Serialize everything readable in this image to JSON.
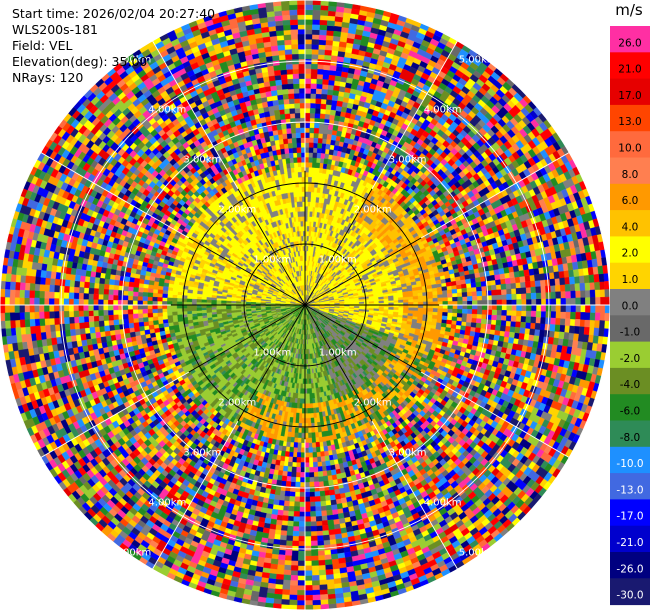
{
  "header": {
    "start_time": "Start time: 2026/02/04 20:27:40",
    "instrument": "WLS200s-181",
    "field": "Field: VEL",
    "elevation": "Elevation(deg): 35.00",
    "nrays": "NRays: 120"
  },
  "colorbar": {
    "unit": "m/s",
    "levels": [
      {
        "label": "26.0",
        "color": "#ff2fa3"
      },
      {
        "label": "21.0",
        "color": "#ff0000"
      },
      {
        "label": "17.0",
        "color": "#e60000"
      },
      {
        "label": "13.0",
        "color": "#ff4500"
      },
      {
        "label": "10.0",
        "color": "#ff6a3d"
      },
      {
        "label": "8.0",
        "color": "#ff7f50"
      },
      {
        "label": "6.0",
        "color": "#ff9900"
      },
      {
        "label": "4.0",
        "color": "#ffc200"
      },
      {
        "label": "2.0",
        "color": "#ffff00"
      },
      {
        "label": "1.0",
        "color": "#ffd400"
      },
      {
        "label": "0.0",
        "color": "#808080"
      },
      {
        "label": "-1.0",
        "color": "#696969"
      },
      {
        "label": "-2.0",
        "color": "#9acd32"
      },
      {
        "label": "-4.0",
        "color": "#6b8e23"
      },
      {
        "label": "-6.0",
        "color": "#228b22"
      },
      {
        "label": "-8.0",
        "color": "#2e8b57"
      },
      {
        "label": "-10.0",
        "color": "#1e90ff"
      },
      {
        "label": "-13.0",
        "color": "#4169e1"
      },
      {
        "label": "-17.0",
        "color": "#0000ff"
      },
      {
        "label": "-21.0",
        "color": "#0000cd"
      },
      {
        "label": "-26.0",
        "color": "#000080"
      },
      {
        "label": "-30.0",
        "color": "#191970"
      }
    ]
  },
  "chart_data": {
    "type": "heatmap",
    "projection": "polar-ppi",
    "field": "VEL",
    "unit": "m/s",
    "elevation_deg": 35.0,
    "nrays": 120,
    "range_rings_km": [
      1.0,
      2.0,
      3.0,
      4.0,
      5.0
    ],
    "range_ring_label": "{r}.00km",
    "max_range_km": 5.0,
    "spoke_step_deg": 30,
    "inner_pattern": [
      {
        "from_km": 0.0,
        "to_km": 1.5,
        "sector": "north",
        "dominant": "yellow / gray (0 to 4 m/s)"
      },
      {
        "from_km": 0.0,
        "to_km": 1.5,
        "sector": "south",
        "dominant": "green (-2 to -6 m/s)"
      },
      {
        "from_km": 1.5,
        "to_km": 2.2,
        "sector": "east",
        "dominant": "orange (4 to 8 m/s)"
      }
    ],
    "outer_pattern": "noisy mixed velocities beyond 2.2 km"
  }
}
